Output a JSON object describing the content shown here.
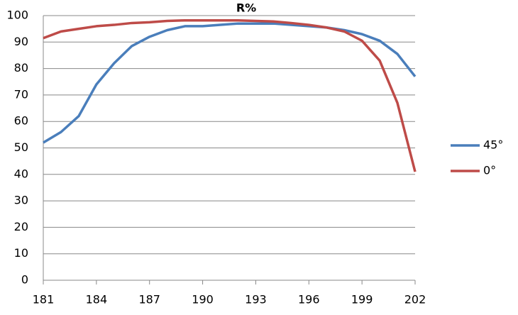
{
  "chart_data": {
    "type": "line",
    "title": "R%",
    "x": [
      181,
      182,
      183,
      184,
      185,
      186,
      187,
      188,
      189,
      190,
      191,
      192,
      193,
      194,
      195,
      196,
      197,
      198,
      199,
      200,
      201,
      202
    ],
    "series": [
      {
        "name": "45°",
        "color": "#4a7ebb",
        "values": [
          52,
          56,
          62,
          74,
          82,
          88.5,
          92,
          94.5,
          96,
          96,
          96.5,
          97,
          97,
          97,
          96.5,
          96,
          95.5,
          94.5,
          93,
          90.5,
          85.5,
          77
        ]
      },
      {
        "name": "0°",
        "color": "#be4b48",
        "values": [
          91.5,
          94,
          95,
          96,
          96.5,
          97.2,
          97.5,
          98,
          98.2,
          98.2,
          98.2,
          98.2,
          98,
          97.8,
          97.2,
          96.5,
          95.5,
          94,
          90.5,
          83,
          67,
          41
        ]
      }
    ],
    "xlim": [
      181,
      202
    ],
    "xticks": [
      181,
      184,
      187,
      190,
      193,
      196,
      199,
      202
    ],
    "ylim": [
      0,
      100
    ],
    "yticks": [
      0,
      10,
      20,
      30,
      40,
      50,
      60,
      70,
      80,
      90,
      100
    ],
    "grid": true,
    "legend": "right"
  }
}
